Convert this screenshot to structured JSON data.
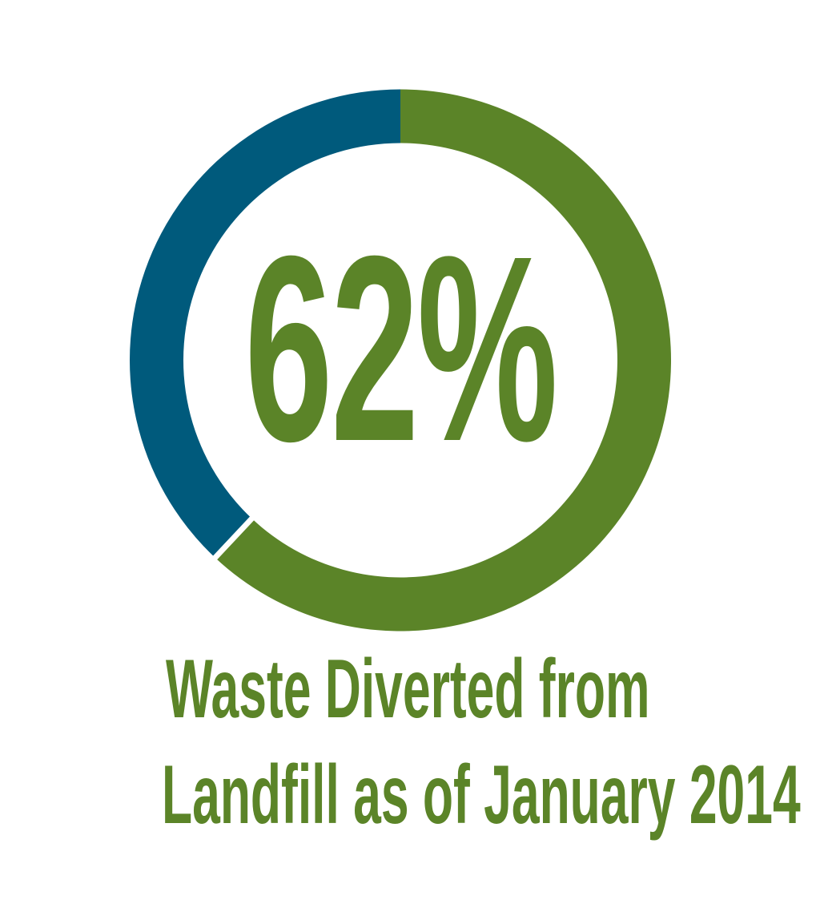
{
  "chart_data": {
    "type": "pie",
    "style": "donut",
    "label": "62%",
    "title_lines": [
      "Waste Diverted from",
      "Landfill as of January 2014"
    ],
    "slices": [
      {
        "value": 62,
        "color": "#5b8428"
      },
      {
        "value": 38,
        "color": "#005a7c"
      }
    ]
  }
}
